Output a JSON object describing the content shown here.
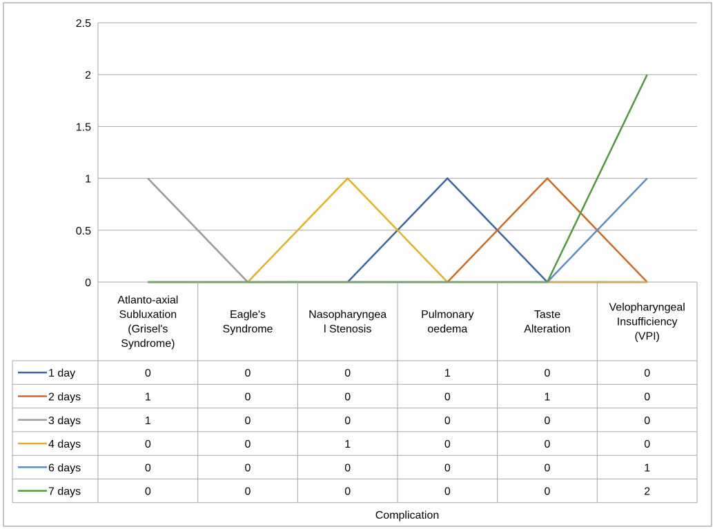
{
  "chart_data": {
    "type": "line",
    "title": "",
    "xlabel": "Complication",
    "ylabel": "",
    "ylim": [
      0,
      2.5
    ],
    "yticks": [
      "0",
      "0.5",
      "1",
      "1.5",
      "2",
      "2.5"
    ],
    "grid": true,
    "legend": "data-table-left",
    "categories": [
      "Atlanto-axial Subluxation (Grisel's Syndrome)",
      "Eagle's Syndrome",
      "Nasopharyngeal Stenosis",
      "Pulmonary oedema",
      "Taste Alteration",
      "Velopharyngeal Insufficiency (VPI)"
    ],
    "category_lines": [
      [
        "Atlanto-axial",
        "Subluxation",
        "(Grisel's",
        "Syndrome)"
      ],
      [
        "Eagle's",
        "Syndrome"
      ],
      [
        "Nasopharyngea",
        "l Stenosis"
      ],
      [
        "Pulmonary",
        "oedema"
      ],
      [
        "Taste",
        "Alteration"
      ],
      [
        "Velopharyngeal",
        "Insufficiency",
        "(VPI)"
      ]
    ],
    "series": [
      {
        "name": "1 day",
        "color": "#3a64a8",
        "values": [
          0,
          0,
          0,
          1,
          0,
          0
        ]
      },
      {
        "name": "2 days",
        "color": "#d2691e",
        "values": [
          1,
          0,
          0,
          0,
          1,
          0
        ]
      },
      {
        "name": "3 days",
        "color": "#9e9e9e",
        "values": [
          1,
          0,
          0,
          0,
          0,
          0
        ]
      },
      {
        "name": "4 days",
        "color": "#e8b020",
        "values": [
          0,
          0,
          1,
          0,
          0,
          0
        ]
      },
      {
        "name": "6 days",
        "color": "#5b8cc8",
        "values": [
          0,
          0,
          0,
          0,
          0,
          1
        ]
      },
      {
        "name": "7 days",
        "color": "#4e9a3a",
        "values": [
          0,
          0,
          0,
          0,
          0,
          2
        ]
      }
    ]
  }
}
